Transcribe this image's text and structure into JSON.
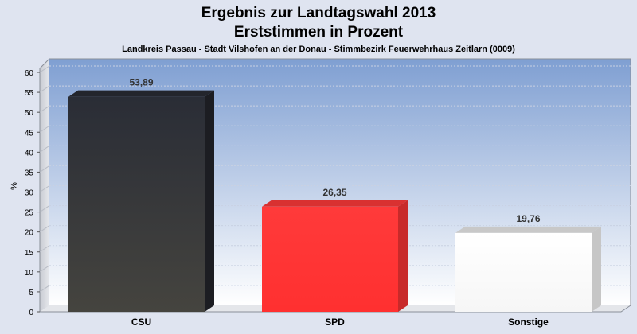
{
  "chart_data": {
    "type": "bar",
    "title": "Ergebnis zur Landtagswahl 2013",
    "subtitle": "Erststimmen in Prozent",
    "caption": "Landkreis Passau - Stadt Vilshofen an der Donau - Stimmbezirk Feuerwehrhaus Zeitlarn (0009)",
    "ylabel": "%",
    "xlabel": "",
    "ylim": [
      0,
      60
    ],
    "yticks": [
      "0",
      "5",
      "10",
      "15",
      "20",
      "25",
      "30",
      "35",
      "40",
      "45",
      "50",
      "55",
      "60"
    ],
    "categories": [
      "CSU",
      "SPD",
      "Sonstige"
    ],
    "values": [
      53.89,
      26.35,
      19.76
    ],
    "value_labels": [
      "53,89",
      "26,35",
      "19,76"
    ],
    "colors": [
      "#3a3a40",
      "#ff3030",
      "#ffffff"
    ],
    "grid": true,
    "legend": "none"
  }
}
